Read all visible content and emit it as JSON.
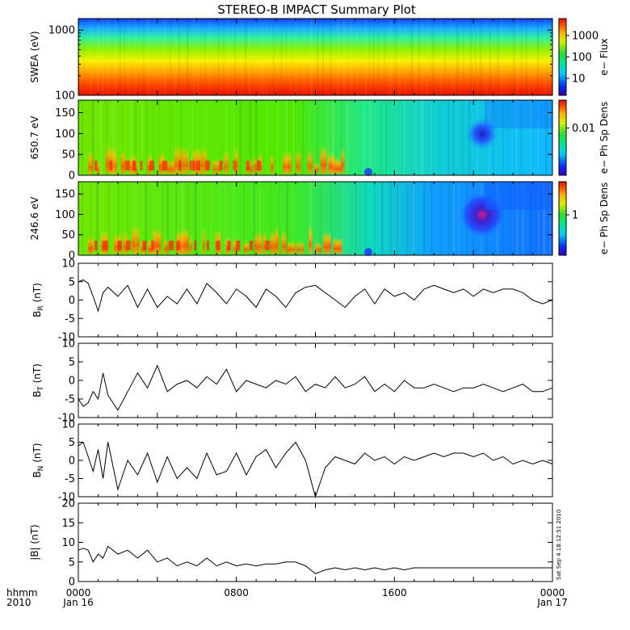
{
  "title": "STEREO-B IMPACT Summary Plot",
  "time_axis": {
    "corner_top": "hhmm",
    "corner_bottom": "2010",
    "ticks": [
      {
        "hour": 0,
        "top": "0000",
        "bottom": "Jan 16"
      },
      {
        "hour": 8,
        "top": "0800",
        "bottom": ""
      },
      {
        "hour": 16,
        "top": "1600",
        "bottom": ""
      },
      {
        "hour": 24,
        "top": "0000",
        "bottom": "Jan 17"
      }
    ]
  },
  "stamp": "Sat Sep  4 18:12:51 2010",
  "colors": {
    "line": "#000000",
    "frame": "#000000"
  },
  "chart_data": [
    {
      "type": "heatmap",
      "id": "swea",
      "ylabel": "SWEA (eV)",
      "ylim": [
        100,
        1500
      ],
      "scale": "log",
      "yticks": [
        {
          "v": 100,
          "label": "100"
        },
        {
          "v": 1000,
          "label": "1000"
        }
      ],
      "colorbar": {
        "label": "e− Flux",
        "ticks": [
          {
            "f": 0.22,
            "label": "10"
          },
          {
            "f": 0.5,
            "label": "100"
          },
          {
            "f": 0.78,
            "label": "1000"
          }
        ]
      }
    },
    {
      "type": "heatmap",
      "id": "pad650",
      "ylabel": "650.7 eV",
      "ylim": [
        0,
        180
      ],
      "yticks": [
        {
          "v": 0,
          "label": "0"
        },
        {
          "v": 50,
          "label": "50"
        },
        {
          "v": 100,
          "label": "100"
        },
        {
          "v": 150,
          "label": "150"
        }
      ],
      "colorbar": {
        "label": "e− Ph Sp Dens",
        "ticks": [
          {
            "f": 0.63,
            "label": "0.01"
          }
        ]
      }
    },
    {
      "type": "heatmap",
      "id": "pad246",
      "ylabel": "246.6 eV",
      "ylim": [
        0,
        180
      ],
      "yticks": [
        {
          "v": 0,
          "label": "0"
        },
        {
          "v": 50,
          "label": "50"
        },
        {
          "v": 100,
          "label": "100"
        },
        {
          "v": 150,
          "label": "150"
        }
      ],
      "colorbar": {
        "label": "e− Ph Sp Dens",
        "ticks": [
          {
            "f": 0.55,
            "label": "1"
          }
        ]
      }
    },
    {
      "type": "line",
      "id": "br",
      "ylabel": "B",
      "ysub": "R",
      "yunit": " (nT)",
      "ylim": [
        -10,
        10
      ],
      "yticks": [
        -10,
        -5,
        0,
        5,
        10
      ],
      "x": [
        0,
        0.25,
        0.5,
        0.75,
        1,
        1.25,
        1.5,
        2,
        2.5,
        3,
        3.5,
        4,
        4.5,
        5,
        5.5,
        6,
        6.5,
        7,
        7.5,
        8,
        8.5,
        9,
        9.5,
        10,
        10.5,
        11,
        11.5,
        12,
        12.5,
        13,
        13.5,
        14,
        14.5,
        15,
        15.5,
        16,
        16.5,
        17,
        17.5,
        18,
        18.5,
        19,
        19.5,
        20,
        20.5,
        21,
        21.5,
        22,
        22.5,
        23,
        23.5,
        24
      ],
      "y": [
        5,
        5.5,
        4.5,
        1,
        -3,
        2,
        3.5,
        1,
        4,
        -2,
        3,
        -2,
        1,
        -1,
        3,
        -1,
        4.5,
        2,
        -1,
        3,
        1,
        -2,
        3,
        1,
        -2,
        2,
        3.5,
        4,
        2,
        0,
        -2,
        1,
        3,
        -1,
        3,
        1,
        2,
        0,
        3,
        4,
        3,
        2,
        3,
        1,
        3,
        2,
        3,
        3,
        2,
        0,
        -1,
        0
      ]
    },
    {
      "type": "line",
      "id": "bt",
      "ylabel": "B",
      "ysub": "T",
      "yunit": " (nT)",
      "ylim": [
        -10,
        10
      ],
      "yticks": [
        -10,
        -5,
        0,
        5,
        10
      ],
      "x": [
        0,
        0.25,
        0.5,
        0.75,
        1,
        1.25,
        1.5,
        2,
        2.5,
        3,
        3.5,
        4,
        4.5,
        5,
        5.5,
        6,
        6.5,
        7,
        7.5,
        8,
        8.5,
        9,
        9.5,
        10,
        10.5,
        11,
        11.5,
        12,
        12.5,
        13,
        13.5,
        14,
        14.5,
        15,
        15.5,
        16,
        16.5,
        17,
        17.5,
        18,
        18.5,
        19,
        19.5,
        20,
        20.5,
        21,
        21.5,
        22,
        22.5,
        23,
        23.5,
        24
      ],
      "y": [
        -5,
        -7,
        -6,
        -3,
        -5,
        2,
        -4,
        -8,
        -3,
        2,
        -2,
        4,
        -3,
        -1,
        0,
        -2,
        1,
        -1,
        3,
        -3,
        0,
        -1,
        -2,
        0,
        -1,
        1,
        -3,
        -1,
        -2,
        1,
        -2,
        -1,
        1,
        -3,
        -1,
        -3,
        0,
        -2,
        -2,
        -1,
        -2,
        -3,
        -2,
        -2,
        -1,
        -2,
        -3,
        -2,
        -1,
        -3,
        -3,
        -2
      ]
    },
    {
      "type": "line",
      "id": "bn",
      "ylabel": "B",
      "ysub": "N",
      "yunit": " (nT)",
      "ylim": [
        -10,
        10
      ],
      "yticks": [
        -10,
        -5,
        0,
        5,
        10
      ],
      "x": [
        0,
        0.25,
        0.5,
        0.75,
        1,
        1.25,
        1.5,
        2,
        2.5,
        3,
        3.5,
        4,
        4.5,
        5,
        5.5,
        6,
        6.5,
        7,
        7.5,
        8,
        8.5,
        9,
        9.5,
        10,
        10.5,
        11,
        11.5,
        12,
        12.5,
        13,
        13.5,
        14,
        14.5,
        15,
        15.5,
        16,
        16.5,
        17,
        17.5,
        18,
        18.5,
        19,
        19.5,
        20,
        20.5,
        21,
        21.5,
        22,
        22.5,
        23,
        23.5,
        24
      ],
      "y": [
        4,
        5,
        1,
        -3,
        3,
        -5,
        5,
        -8,
        0,
        -4,
        2,
        -6,
        1,
        -5,
        -2,
        -5,
        2,
        -4,
        -3,
        2,
        -4,
        1,
        3,
        -2,
        2,
        5,
        0,
        -10,
        -2,
        1,
        0,
        -1,
        2,
        0,
        1,
        -1,
        1,
        0,
        1,
        2,
        1,
        2,
        2,
        1,
        2,
        0,
        1,
        -1,
        0,
        -1,
        0,
        -1
      ]
    },
    {
      "type": "line",
      "id": "bmag",
      "ylabel": "|B| (nT)",
      "ylim": [
        0,
        20
      ],
      "yticks": [
        0,
        5,
        10,
        15,
        20
      ],
      "x": [
        0,
        0.25,
        0.5,
        0.75,
        1,
        1.25,
        1.5,
        2,
        2.5,
        3,
        3.5,
        4,
        4.5,
        5,
        5.5,
        6,
        6.5,
        7,
        7.5,
        8,
        8.5,
        9,
        9.5,
        10,
        10.5,
        11,
        11.5,
        12,
        12.5,
        13,
        13.5,
        14,
        14.5,
        15,
        15.5,
        16,
        16.5,
        17,
        17.5,
        18,
        18.5,
        19,
        19.5,
        20,
        20.5,
        21,
        21.5,
        22,
        22.5,
        23,
        23.5,
        24
      ],
      "y": [
        8,
        8.5,
        8,
        5,
        7,
        6,
        9,
        7,
        8,
        6,
        8,
        5,
        6,
        4,
        5,
        4,
        6,
        4,
        5,
        4,
        4.5,
        4,
        4.5,
        4.5,
        5,
        5,
        4,
        2,
        3,
        3.5,
        3,
        3.5,
        3,
        3.5,
        3,
        3.5,
        3,
        3.5,
        3.5,
        3.5,
        3.5,
        3.5,
        3.5,
        3.5,
        3.5,
        3.5,
        3.5,
        3.5,
        3.5,
        3.5,
        3.5,
        3.5
      ]
    }
  ]
}
